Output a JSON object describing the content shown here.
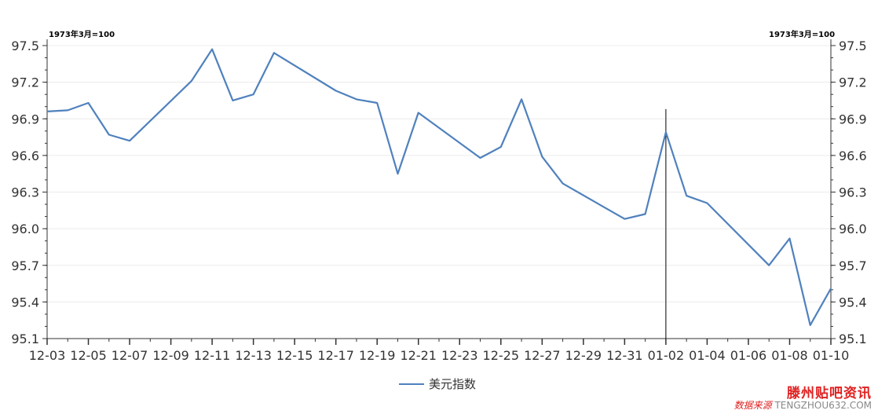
{
  "chart_data": {
    "type": "line",
    "unit_label": "1973年3月=100",
    "x": [
      "12-03",
      "12-04",
      "12-05",
      "12-06",
      "12-07",
      "12-10",
      "12-11",
      "12-12",
      "12-13",
      "12-14",
      "12-17",
      "12-18",
      "12-19",
      "12-20",
      "12-21",
      "12-24",
      "12-25",
      "12-26",
      "12-27",
      "12-28",
      "12-31",
      "01-01",
      "01-02",
      "01-03",
      "01-04",
      "01-07",
      "01-08",
      "01-09",
      "01-10"
    ],
    "x_ticks": [
      "12-03",
      "12-05",
      "12-07",
      "12-09",
      "12-11",
      "12-13",
      "12-15",
      "12-17",
      "12-19",
      "12-21",
      "12-23",
      "12-25",
      "12-27",
      "12-29",
      "12-31",
      "01-02",
      "01-04",
      "01-06",
      "01-08",
      "01-10"
    ],
    "series": [
      {
        "name": "美元指数",
        "color": "#4f81bd",
        "values": [
          96.96,
          96.97,
          97.03,
          96.77,
          96.72,
          97.21,
          97.47,
          97.05,
          97.1,
          97.44,
          97.13,
          97.06,
          97.03,
          96.45,
          96.95,
          96.58,
          96.67,
          97.06,
          96.59,
          96.37,
          96.08,
          96.12,
          96.79,
          96.27,
          96.21,
          95.7,
          95.92,
          95.21,
          95.51
        ]
      }
    ],
    "y_ticks": [
      "97.5",
      "97.2",
      "96.9",
      "96.6",
      "96.3",
      "96.0",
      "95.7",
      "95.4",
      "95.1"
    ],
    "ylim": [
      95.1,
      97.5
    ],
    "marker_x": "01-02",
    "grid": "horizontal",
    "legend_position": "bottom"
  },
  "watermark": {
    "title": "滕州贴吧资讯",
    "subtitle": "数据来源",
    "site": "TENGZHOU632.COM"
  }
}
